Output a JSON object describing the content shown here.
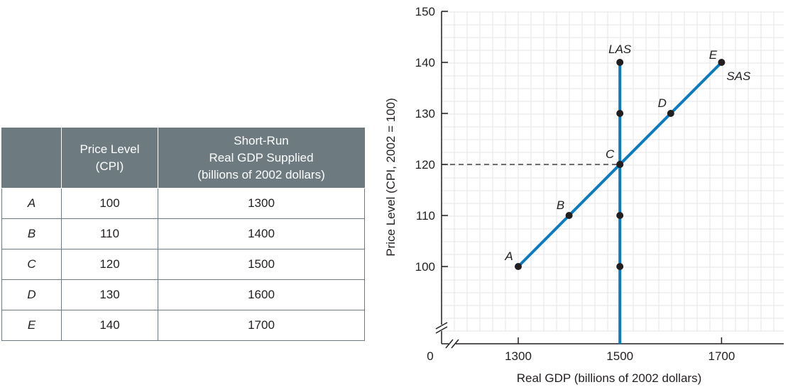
{
  "table": {
    "headers": [
      [],
      [
        "Price Level",
        "(CPI)"
      ],
      [
        "Short-Run",
        "Real GDP Supplied",
        "(billions of 2002 dollars)"
      ]
    ],
    "rows": [
      {
        "label": "A",
        "price": "100",
        "gdp": "1300"
      },
      {
        "label": "B",
        "price": "110",
        "gdp": "1400"
      },
      {
        "label": "C",
        "price": "120",
        "gdp": "1500"
      },
      {
        "label": "D",
        "price": "130",
        "gdp": "1600"
      },
      {
        "label": "E",
        "price": "140",
        "gdp": "1700"
      }
    ]
  },
  "chart_data": {
    "type": "line",
    "xlabel": "Real GDP (billions of 2002 dollars)",
    "ylabel": "Price Level (CPI, 2002 = 100)",
    "origin_label": "0",
    "xlim": [
      1200,
      1800
    ],
    "ylim": [
      90,
      150
    ],
    "xticks": [
      1300,
      1500,
      1700
    ],
    "yticks": [
      100,
      110,
      120,
      130,
      140,
      150
    ],
    "axis_breaks": true,
    "grid": true,
    "series": [
      {
        "name": "SAS",
        "color": "#0a7bc1",
        "points": [
          {
            "label": "A",
            "x": 1300,
            "y": 100
          },
          {
            "label": "B",
            "x": 1400,
            "y": 110
          },
          {
            "label": "C",
            "x": 1500,
            "y": 120
          },
          {
            "label": "D",
            "x": 1600,
            "y": 130
          },
          {
            "label": "E",
            "x": 1700,
            "y": 140
          }
        ]
      },
      {
        "name": "LAS",
        "color": "#0a7bc1",
        "vertical_at_x": 1500,
        "points": [
          {
            "x": 1500,
            "y": 100
          },
          {
            "x": 1500,
            "y": 110
          },
          {
            "x": 1500,
            "y": 120
          },
          {
            "x": 1500,
            "y": 130
          },
          {
            "x": 1500,
            "y": 140
          }
        ]
      }
    ],
    "reference_line": {
      "y": 120,
      "to_x": 1500,
      "style": "dashed"
    }
  }
}
